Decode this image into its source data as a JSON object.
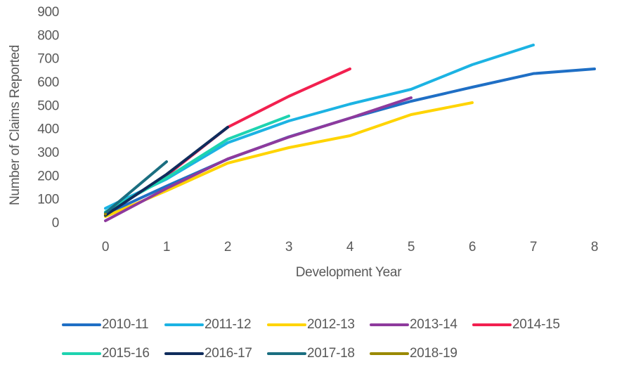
{
  "chart_data": {
    "type": "line",
    "x_label": "Development Year",
    "y_label": "Number of Claims Reported",
    "categories": [
      "0",
      "1",
      "2",
      "3",
      "4",
      "5",
      "6",
      "7",
      "8"
    ],
    "ylim": [
      0,
      900
    ],
    "yticks": [
      0,
      100,
      200,
      300,
      400,
      500,
      600,
      700,
      800,
      900
    ],
    "grid": false,
    "legend": "bottom",
    "series": [
      {
        "name": "2010-11",
        "color": "#1f6fc5",
        "values": [
          40,
          160,
          275,
          370,
          450,
          522,
          582,
          640,
          660
        ]
      },
      {
        "name": "2011-12",
        "color": "#1cb3e3",
        "values": [
          65,
          190,
          345,
          438,
          510,
          573,
          678,
          762,
          null
        ]
      },
      {
        "name": "2012-13",
        "color": "#ffd400",
        "values": [
          30,
          140,
          258,
          324,
          375,
          465,
          516,
          null,
          null
        ]
      },
      {
        "name": "2013-14",
        "color": "#8e3a9d",
        "values": [
          12,
          150,
          276,
          369,
          450,
          537,
          null,
          null,
          null
        ]
      },
      {
        "name": "2014-15",
        "color": "#f2204f",
        "values": [
          40,
          205,
          411,
          543,
          660,
          null,
          null,
          null,
          null
        ]
      },
      {
        "name": "2015-16",
        "color": "#1ed3b0",
        "values": [
          50,
          195,
          360,
          459,
          null,
          null,
          null,
          null,
          null
        ]
      },
      {
        "name": "2016-17",
        "color": "#0f2c5c",
        "values": [
          35,
          210,
          411,
          null,
          null,
          null,
          null,
          null,
          null
        ]
      },
      {
        "name": "2017-18",
        "color": "#1a6e80",
        "values": [
          45,
          264,
          null,
          null,
          null,
          null,
          null,
          null,
          null
        ]
      },
      {
        "name": "2018-19",
        "color": "#9a8900",
        "values": [
          40,
          null,
          null,
          null,
          null,
          null,
          null,
          null,
          null
        ]
      }
    ]
  }
}
